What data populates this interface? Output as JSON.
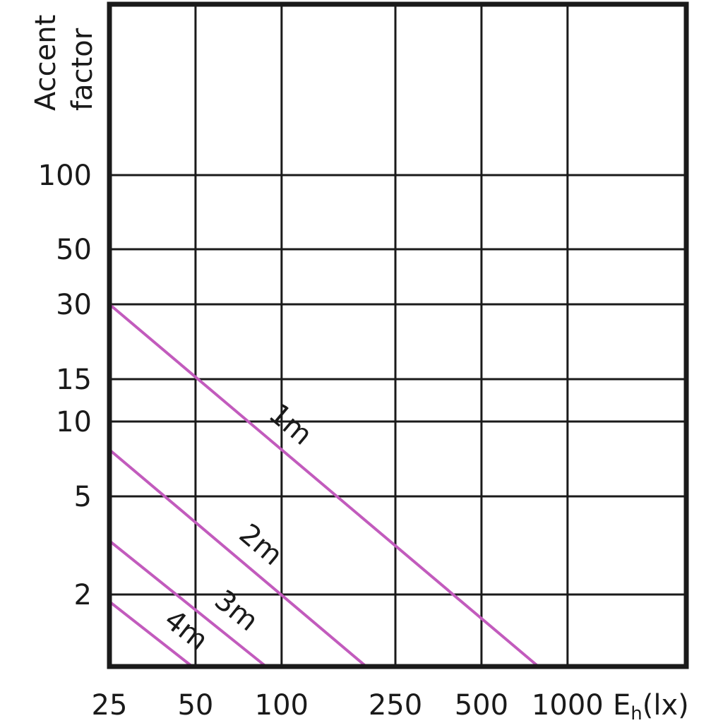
{
  "chart_data": {
    "type": "line",
    "ylabel_lines": [
      "Accent",
      "factor"
    ],
    "xlabel_parts": {
      "main": "E",
      "sub": "h",
      "unit": "(lx)"
    },
    "x_ticks": [
      "25",
      "50",
      "100",
      "250",
      "500",
      "1000"
    ],
    "x_tick_values": [
      25,
      50,
      100,
      250,
      500,
      1000
    ],
    "y_ticks": [
      "100",
      "50",
      "30",
      "15",
      "10",
      "5",
      "2"
    ],
    "y_tick_values": [
      100,
      50,
      30,
      15,
      10,
      5,
      2
    ],
    "grid": true,
    "line_color": "#c25bbd",
    "series": [
      {
        "name": "1m",
        "x": [
          25,
          780
        ],
        "y": [
          30,
          1.2
        ]
      },
      {
        "name": "2m",
        "x": [
          25,
          195
        ],
        "y": [
          7.7,
          1.2
        ]
      },
      {
        "name": "3m",
        "x": [
          25,
          87
        ],
        "y": [
          3.3,
          1.2
        ]
      },
      {
        "name": "4m",
        "x": [
          25,
          48
        ],
        "y": [
          1.9,
          1.2
        ]
      }
    ]
  }
}
